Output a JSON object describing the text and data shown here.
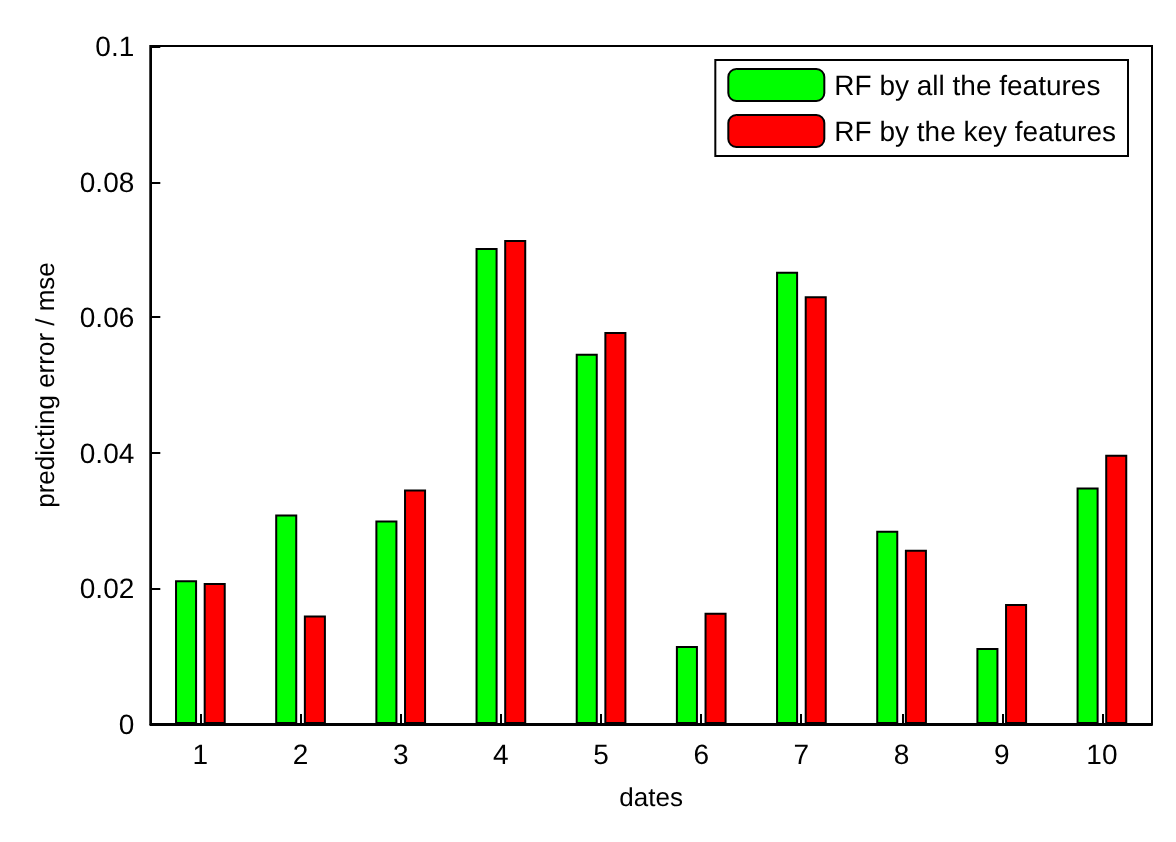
{
  "chart_data": {
    "type": "bar",
    "xlabel": "dates",
    "ylabel": "predicting error / mse",
    "categories": [
      "1",
      "2",
      "3",
      "4",
      "5",
      "6",
      "7",
      "8",
      "9",
      "10"
    ],
    "series": [
      {
        "name": "RF by all the features",
        "color": "#00ff00",
        "values": [
          0.0212,
          0.0309,
          0.03,
          0.0702,
          0.0546,
          0.0115,
          0.0667,
          0.0285,
          0.0112,
          0.0349
        ]
      },
      {
        "name": "RF by the key features",
        "color": "#ff0000",
        "values": [
          0.0208,
          0.016,
          0.0346,
          0.0714,
          0.0578,
          0.0164,
          0.0631,
          0.0257,
          0.0177,
          0.0397
        ]
      }
    ],
    "ylim": [
      0,
      0.1
    ],
    "yticks": [
      0,
      0.02,
      0.04,
      0.06,
      0.08,
      0.1
    ],
    "grid": false,
    "legend": "top right"
  }
}
